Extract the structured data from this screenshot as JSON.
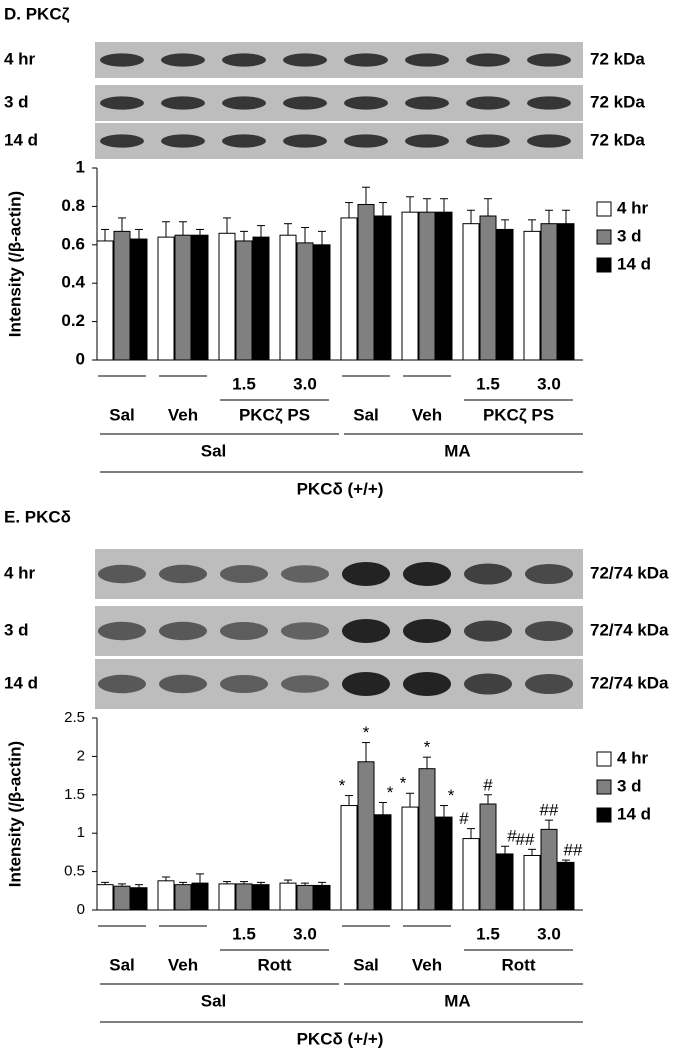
{
  "chart_data": [
    {
      "type": "bar",
      "title": "D. PKCζ",
      "blot": {
        "rows": [
          "4 hr",
          "3 d",
          "14 d"
        ],
        "size_labels": [
          "72 kDa",
          "72 kDa",
          "72 kDa"
        ]
      },
      "y_label": "Intensity (/β-actin)",
      "categories": [
        null,
        null,
        "1.5",
        "3.0",
        null,
        null,
        "1.5",
        "3.0"
      ],
      "treatment_labels": [
        "Sal",
        "Veh",
        "PKCζ PS",
        "Sal",
        "Veh",
        "PKCζ PS"
      ],
      "condition_labels": [
        "Sal",
        "MA"
      ],
      "genotype_label": "PKCδ (+/+)",
      "ylim": [
        0,
        1
      ],
      "yticks": [
        0,
        0.2,
        0.4,
        0.6,
        0.8,
        1
      ],
      "series": [
        {
          "name": "4 hr",
          "color": "#ffffff",
          "values": [
            0.62,
            0.64,
            0.66,
            0.65,
            0.74,
            0.77,
            0.71,
            0.67
          ],
          "errors": [
            0.06,
            0.08,
            0.08,
            0.06,
            0.08,
            0.08,
            0.07,
            0.06
          ]
        },
        {
          "name": "3 d",
          "color": "#808080",
          "values": [
            0.67,
            0.65,
            0.62,
            0.61,
            0.81,
            0.77,
            0.75,
            0.71
          ],
          "errors": [
            0.07,
            0.07,
            0.05,
            0.08,
            0.09,
            0.07,
            0.09,
            0.07
          ]
        },
        {
          "name": "14 d",
          "color": "#000000",
          "values": [
            0.63,
            0.65,
            0.64,
            0.6,
            0.75,
            0.77,
            0.68,
            0.71
          ],
          "errors": [
            0.05,
            0.03,
            0.06,
            0.07,
            0.07,
            0.07,
            0.05,
            0.07
          ]
        }
      ]
    },
    {
      "type": "bar",
      "title": "E. PKCδ",
      "blot": {
        "rows": [
          "4 hr",
          "3 d",
          "14 d"
        ],
        "size_labels": [
          "72/74 kDa",
          "72/74 kDa",
          "72/74 kDa"
        ]
      },
      "y_label": "Intensity (/β-actin)",
      "categories": [
        null,
        null,
        "1.5",
        "3.0",
        null,
        null,
        "1.5",
        "3.0"
      ],
      "treatment_labels": [
        "Sal",
        "Veh",
        "Rott",
        "Sal",
        "Veh",
        "Rott"
      ],
      "condition_labels": [
        "Sal",
        "MA"
      ],
      "genotype_label": "PKCδ (+/+)",
      "ylim": [
        0,
        2.5
      ],
      "yticks": [
        0,
        0.5,
        1,
        1.5,
        2,
        2.5
      ],
      "series": [
        {
          "name": "4 hr",
          "color": "#ffffff",
          "values": [
            0.33,
            0.38,
            0.34,
            0.35,
            1.36,
            1.34,
            0.93,
            0.71
          ],
          "errors": [
            0.03,
            0.05,
            0.03,
            0.04,
            0.13,
            0.18,
            0.13,
            0.08
          ],
          "annotations": [
            null,
            null,
            null,
            null,
            "*",
            "*",
            "#",
            "##"
          ]
        },
        {
          "name": "3 d",
          "color": "#808080",
          "values": [
            0.31,
            0.33,
            0.34,
            0.32,
            1.93,
            1.84,
            1.38,
            1.05
          ],
          "errors": [
            0.03,
            0.03,
            0.03,
            0.03,
            0.25,
            0.15,
            0.12,
            0.12
          ],
          "annotations": [
            null,
            null,
            null,
            null,
            "*",
            "*",
            "#",
            "##"
          ]
        },
        {
          "name": "14 d",
          "color": "#000000",
          "values": [
            0.29,
            0.35,
            0.33,
            0.32,
            1.24,
            1.21,
            0.73,
            0.62
          ],
          "errors": [
            0.04,
            0.12,
            0.03,
            0.04,
            0.16,
            0.15,
            0.1,
            0.03
          ],
          "annotations": [
            null,
            null,
            null,
            null,
            "*",
            "*",
            "#",
            "##"
          ]
        }
      ]
    }
  ]
}
